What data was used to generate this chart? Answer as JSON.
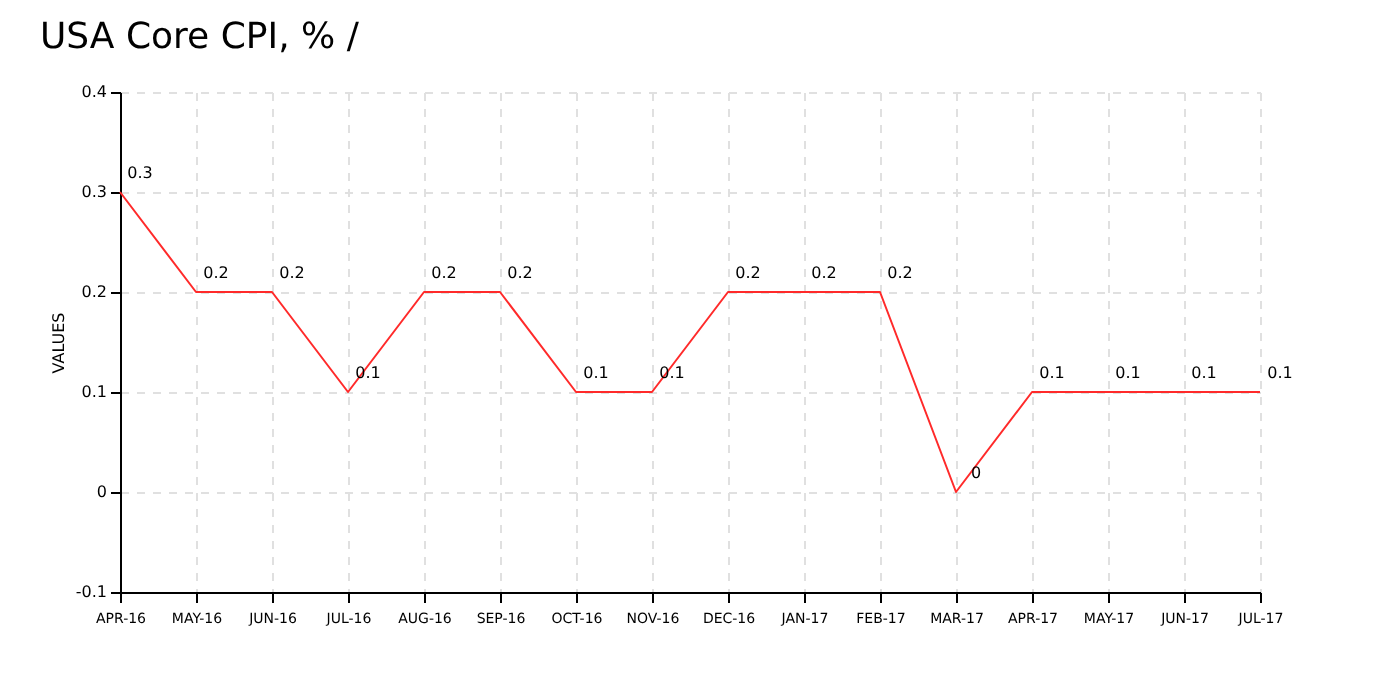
{
  "chart_data": {
    "type": "line",
    "title": "USA Core CPI, % /",
    "ylabel": "VALUES",
    "categories": [
      "APR-16",
      "MAY-16",
      "JUN-16",
      "JUL-16",
      "AUG-16",
      "SEP-16",
      "OCT-16",
      "NOV-16",
      "DEC-16",
      "JAN-17",
      "FEB-17",
      "MAR-17",
      "APR-17",
      "MAY-17",
      "JUN-17",
      "JUL-17"
    ],
    "series": [
      {
        "color": "#ff2a2a",
        "values": [
          0.3,
          0.2,
          0.2,
          0.1,
          0.2,
          0.2,
          0.1,
          0.1,
          0.2,
          0.2,
          0.2,
          0,
          0.1,
          0.1,
          0.1,
          0.1
        ]
      }
    ],
    "ylim": [
      -0.1,
      0.4
    ],
    "yticks": [
      -0.1,
      0,
      0.1,
      0.2,
      0.3,
      0.4
    ],
    "grid": true,
    "data_labels": true
  }
}
